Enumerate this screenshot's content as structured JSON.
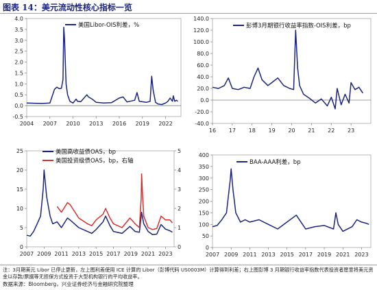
{
  "figure": {
    "title": "图表 14：美元流动性核心指标一览",
    "footnote": "注：3月期美元 Libor 已停止更新，左上图利差使用 ICE 计算的 Libor（彭博代码 US0003M）计算得到利差；右上图彭博 3 月期银行收益率指数代表投资者愿意将美元资金以存款/票据等无担保方式投资于大型机构银行的平均收益率。",
    "source": "数据来源：Bloomberg，兴业证券经济与金融研究院整理"
  },
  "colors": {
    "navy": "#1a237e",
    "red": "#d32f2f",
    "title": "#1a237e"
  },
  "chart_data": [
    {
      "type": "line",
      "legend": "美国Libor-OIS利差，%",
      "xlim": [
        2004,
        2024
      ],
      "ylim": [
        -0.5,
        4.0
      ],
      "x_ticks": [
        "2004",
        "2007",
        "2010",
        "2013",
        "2016",
        "2019",
        "2022"
      ],
      "y_ticks": [
        "4.0",
        "3.5",
        "3.0",
        "2.5",
        "2.0",
        "1.5",
        "1.0",
        "0.5",
        "0.0",
        "-0.5"
      ],
      "series": [
        {
          "x": [
            2004.0,
            2005.0,
            2006.0,
            2007.0,
            2007.6,
            2007.9,
            2008.2,
            2008.5,
            2008.7,
            2008.8,
            2008.9,
            2009.1,
            2009.3,
            2009.6,
            2010.0,
            2010.4,
            2010.6,
            2011.0,
            2011.8,
            2012.0,
            2012.5,
            2013.0,
            2014.0,
            2015.0,
            2016.0,
            2016.5,
            2017.0,
            2018.0,
            2018.3,
            2018.6,
            2019.0,
            2019.5,
            2020.0,
            2020.2,
            2020.4,
            2020.7,
            2021.0,
            2021.5,
            2022.0,
            2022.3,
            2022.6,
            2022.9,
            2023.0,
            2023.2,
            2023.4,
            2023.6
          ],
          "values": [
            0.12,
            0.11,
            0.1,
            0.12,
            0.75,
            0.85,
            0.78,
            0.8,
            1.2,
            3.6,
            3.1,
            1.0,
            0.5,
            0.2,
            0.12,
            0.3,
            0.2,
            0.18,
            0.5,
            0.4,
            0.3,
            0.15,
            0.12,
            0.14,
            0.35,
            0.4,
            0.17,
            0.25,
            0.6,
            0.2,
            0.18,
            0.15,
            0.2,
            1.35,
            0.7,
            0.15,
            0.08,
            0.05,
            0.12,
            0.2,
            0.35,
            0.2,
            0.45,
            0.2,
            0.25,
            0.2
          ]
        }
      ]
    },
    {
      "type": "line",
      "legend": "彭博3月期银行收益率指数-OIS利差，bp",
      "xlim": [
        2016,
        2024
      ],
      "ylim": [
        -40,
        140
      ],
      "x_ticks": [
        "16",
        "17",
        "18",
        "19",
        "20",
        "21",
        "22",
        "23"
      ],
      "y_ticks": [
        "140.0",
        "120.0",
        "100.0",
        "80.0",
        "60.0",
        "40.0",
        "20.0",
        "0.0",
        "-20.0",
        "-40.0"
      ],
      "series": [
        {
          "x": [
            2016.0,
            2016.3,
            2016.6,
            2016.8,
            2017.0,
            2017.3,
            2017.6,
            2017.9,
            2018.1,
            2018.3,
            2018.5,
            2018.8,
            2019.0,
            2019.3,
            2019.6,
            2019.9,
            2020.1,
            2020.2,
            2020.3,
            2020.4,
            2020.6,
            2020.9,
            2021.2,
            2021.5,
            2021.8,
            2022.0,
            2022.2,
            2022.3,
            2022.5,
            2022.7,
            2022.9,
            2023.0,
            2023.2,
            2023.4,
            2023.6
          ],
          "values": [
            22,
            20,
            25,
            38,
            20,
            18,
            22,
            20,
            40,
            55,
            35,
            25,
            30,
            38,
            25,
            20,
            18,
            120,
            55,
            25,
            10,
            3,
            -5,
            2,
            -10,
            5,
            -15,
            20,
            -8,
            10,
            -5,
            30,
            18,
            22,
            12
          ]
        }
      ]
    },
    {
      "type": "line",
      "legend": [
        "美国高收益债OAS，bp",
        "美国投资级债OAS，bp，右轴"
      ],
      "xlim": [
        2007,
        2024
      ],
      "ylim_left": [
        0,
        25
      ],
      "ylim_right": [
        0,
        5
      ],
      "x_ticks": [
        "2007",
        "2009",
        "2011",
        "2013",
        "2015",
        "2017",
        "2019",
        "2021",
        "2023"
      ],
      "y_ticks_left": [
        "25",
        "20",
        "15",
        "10",
        "5",
        "0"
      ],
      "y_ticks_right": [
        "5",
        "4",
        "3",
        "2",
        "1",
        "0"
      ],
      "series": [
        {
          "name": "美国高收益债OAS，bp",
          "x": [
            2007.0,
            2007.4,
            2007.8,
            2008.2,
            2008.6,
            2008.9,
            2009.0,
            2009.3,
            2009.7,
            2010.0,
            2010.5,
            2011.0,
            2011.7,
            2012.0,
            2013.0,
            2014.0,
            2014.5,
            2015.0,
            2015.8,
            2016.1,
            2016.6,
            2017.0,
            2018.0,
            2018.9,
            2019.5,
            2020.0,
            2020.25,
            2020.5,
            2021.0,
            2021.5,
            2022.0,
            2022.5,
            2023.0,
            2023.5,
            2023.8
          ],
          "values": [
            3,
            2.8,
            4,
            6,
            8,
            15,
            20,
            13,
            8,
            6,
            6.5,
            5,
            7.5,
            7,
            5,
            4,
            3.5,
            4.5,
            6.5,
            8,
            5.5,
            4,
            3.5,
            5.3,
            4,
            3.8,
            9,
            6,
            4,
            3.2,
            3.3,
            5.8,
            4.6,
            4.2,
            3.8
          ]
        },
        {
          "name": "美国投资级债OAS，bp，右轴",
          "x": [
            2010.5,
            2011.0,
            2011.7,
            2012.0,
            2013.0,
            2014.0,
            2014.5,
            2015.0,
            2015.8,
            2016.1,
            2016.6,
            2017.0,
            2018.0,
            2018.9,
            2019.5,
            2020.0,
            2020.2,
            2020.25,
            2020.35,
            2020.5,
            2021.0,
            2021.5,
            2022.0,
            2022.5,
            2023.0,
            2023.5,
            2023.8
          ],
          "values": [
            2.1,
            1.8,
            2.3,
            2.2,
            1.5,
            1.2,
            1.1,
            1.4,
            1.7,
            2.0,
            1.5,
            1.2,
            1.0,
            1.5,
            1.2,
            1.0,
            2.5,
            3.8,
            2.8,
            1.6,
            1.0,
            0.9,
            0.95,
            1.6,
            1.4,
            1.4,
            1.25
          ]
        }
      ]
    },
    {
      "type": "line",
      "legend": "BAA-AAA利差，bp",
      "xlim": [
        2007,
        2024
      ],
      "ylim": [
        0,
        400
      ],
      "x_ticks": [
        "2007",
        "2009",
        "2011",
        "2013",
        "2015",
        "2017",
        "2019",
        "2021",
        "2023"
      ],
      "y_ticks": [
        "400",
        "350",
        "300",
        "250",
        "200",
        "150",
        "100",
        "50",
        "0"
      ],
      "series": [
        {
          "x": [
            2007.0,
            2007.5,
            2008.0,
            2008.5,
            2008.9,
            2009.0,
            2009.2,
            2009.5,
            2010.0,
            2010.5,
            2011.0,
            2012.0,
            2013.0,
            2014.0,
            2015.0,
            2016.0,
            2016.5,
            2017.0,
            2018.0,
            2019.0,
            2020.0,
            2020.25,
            2020.5,
            2021.0,
            2022.0,
            2022.5,
            2023.0,
            2023.5,
            2023.8
          ],
          "values": [
            90,
            95,
            120,
            150,
            290,
            340,
            250,
            150,
            110,
            120,
            110,
            120,
            100,
            80,
            110,
            140,
            110,
            80,
            90,
            95,
            80,
            150,
            100,
            70,
            90,
            120,
            110,
            105,
            100
          ]
        }
      ]
    }
  ]
}
